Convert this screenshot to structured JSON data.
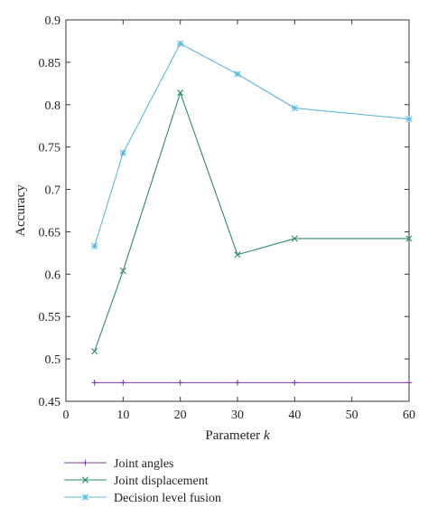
{
  "chart_data": {
    "type": "line",
    "title": "",
    "xlabel": "Parameter k",
    "xlabel_main": "Parameter ",
    "xlabel_var": "k",
    "ylabel": "Accuracy",
    "xlim": [
      0,
      60
    ],
    "ylim": [
      0.45,
      0.9
    ],
    "xticks": [
      0,
      10,
      20,
      30,
      40,
      50,
      60
    ],
    "yticks": [
      0.45,
      0.5,
      0.55,
      0.6,
      0.65,
      0.7,
      0.75,
      0.8,
      0.85,
      0.9
    ],
    "grid": false,
    "legend_position": "bottom",
    "x": [
      5,
      10,
      20,
      30,
      40,
      60
    ],
    "series": [
      {
        "name": "Joint angles",
        "marker": "plus",
        "color": "#7b3f9e",
        "values": [
          0.472,
          0.472,
          0.472,
          0.472,
          0.472,
          0.472
        ]
      },
      {
        "name": "Joint displacement",
        "marker": "x",
        "color": "#2e8b6a",
        "values": [
          0.509,
          0.604,
          0.814,
          0.623,
          0.642,
          0.642
        ]
      },
      {
        "name": "Decision level fusion",
        "marker": "asterisk",
        "color": "#5cb8e0",
        "values": [
          0.633,
          0.743,
          0.872,
          0.836,
          0.796,
          0.783
        ]
      }
    ]
  }
}
